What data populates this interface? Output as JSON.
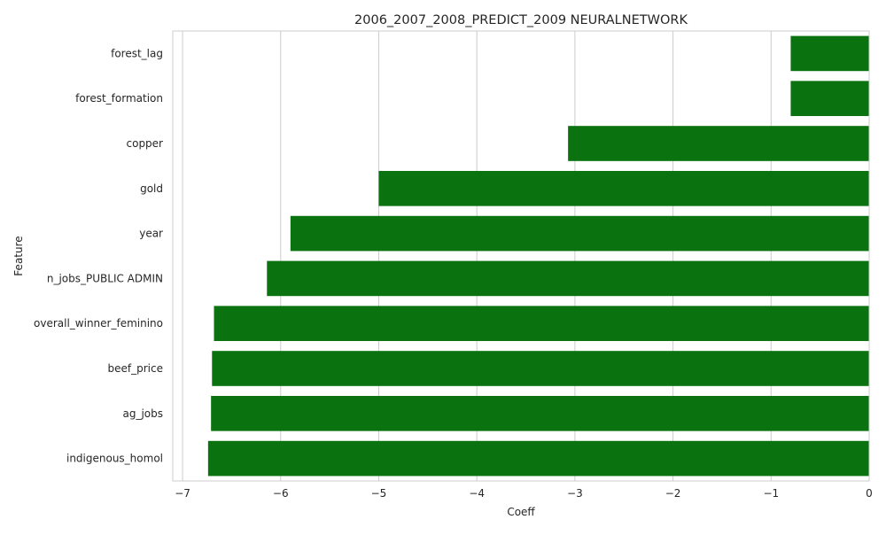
{
  "chart_data": {
    "type": "bar",
    "orientation": "horizontal",
    "title": "2006_2007_2008_PREDICT_2009 NEURALNETWORK",
    "xlabel": "Coeff",
    "ylabel": "Feature",
    "xlim": [
      -7.1,
      0
    ],
    "xticks": [
      -7,
      -6,
      -5,
      -4,
      -3,
      -2,
      -1,
      0
    ],
    "xtick_labels": [
      "−7",
      "−6",
      "−5",
      "−4",
      "−3",
      "−2",
      "−1",
      "0"
    ],
    "grid": "vertical",
    "bar_color": "#0a7310",
    "categories": [
      "forest_lag",
      "forest_formation",
      "copper",
      "gold",
      "year",
      "n_jobs_PUBLIC ADMIN",
      "overall_winner_feminino",
      "beef_price",
      "ag_jobs",
      "indigenous_homol"
    ],
    "values": [
      -0.8,
      -0.8,
      -3.07,
      -5.0,
      -5.9,
      -6.14,
      -6.68,
      -6.7,
      -6.71,
      -6.74
    ]
  }
}
